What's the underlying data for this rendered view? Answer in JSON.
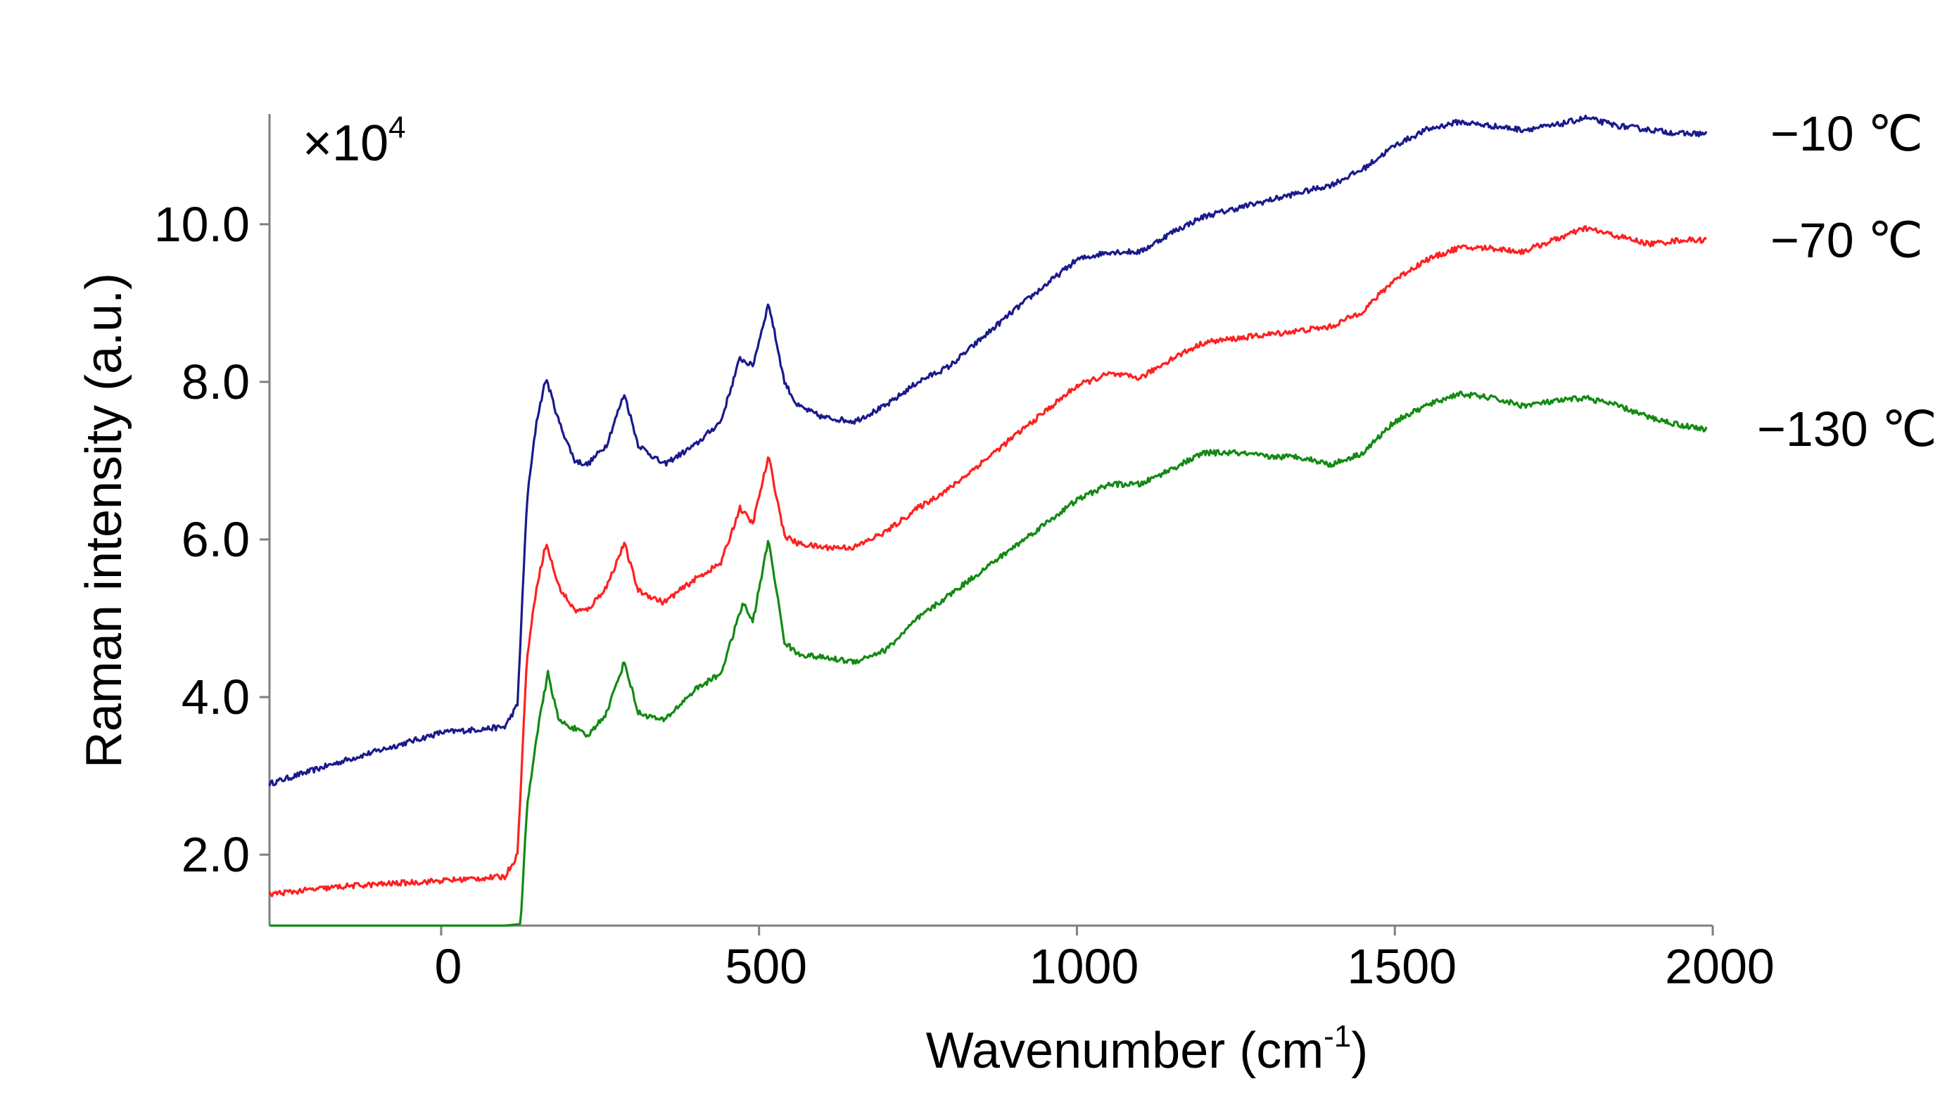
{
  "chart_data": {
    "type": "line",
    "title": "",
    "xlabel": "Wavenumber (cm",
    "xlabel_sup": "-1",
    "xlabel_tail": ")",
    "ylabel": "Raman intensity (a.u.)",
    "multiplier_label": "×10",
    "multiplier_exp": "4",
    "xlim": [
      -270,
      2000
    ],
    "ylim": [
      1.1,
      11.4
    ],
    "xticks": [
      0,
      500,
      1000,
      1500,
      2000
    ],
    "xtick_labels": [
      "0",
      "500",
      "1000",
      "1500",
      "2000"
    ],
    "yticks": [
      2.0,
      4.0,
      6.0,
      8.0,
      10.0
    ],
    "ytick_labels": [
      "2.0",
      "4.0",
      "6.0",
      "8.0",
      "10.0"
    ],
    "grid": false,
    "legend_placement": "right of line ends",
    "series": [
      {
        "name": "−10 ℃",
        "color": "#1a1a8c",
        "x": [
          -270,
          -150,
          0,
          100,
          120,
          135,
          150,
          165,
          185,
          210,
          230,
          260,
          288,
          310,
          350,
          400,
          440,
          470,
          490,
          515,
          540,
          560,
          600,
          650,
          700,
          750,
          800,
          900,
          1000,
          1050,
          1100,
          1150,
          1200,
          1250,
          1300,
          1350,
          1400,
          1450,
          1500,
          1550,
          1600,
          1650,
          1700,
          1750,
          1800,
          1850,
          1900,
          1950,
          1990
        ],
        "values": [
          2.9,
          3.2,
          3.55,
          3.62,
          3.9,
          6.5,
          7.5,
          8.05,
          7.5,
          7.0,
          6.95,
          7.2,
          7.85,
          7.2,
          6.95,
          7.2,
          7.5,
          8.3,
          8.2,
          9.0,
          8.0,
          7.7,
          7.55,
          7.5,
          7.7,
          8.0,
          8.2,
          8.9,
          9.55,
          9.65,
          9.65,
          9.9,
          10.1,
          10.2,
          10.3,
          10.4,
          10.5,
          10.7,
          11.0,
          11.2,
          11.3,
          11.25,
          11.2,
          11.25,
          11.35,
          11.25,
          11.2,
          11.15,
          11.15
        ]
      },
      {
        "name": "−70 ℃",
        "color": "#ff2020",
        "x": [
          -270,
          -150,
          0,
          100,
          120,
          135,
          150,
          165,
          185,
          210,
          230,
          260,
          288,
          310,
          350,
          400,
          440,
          470,
          490,
          515,
          540,
          560,
          600,
          650,
          700,
          750,
          800,
          900,
          1000,
          1050,
          1100,
          1150,
          1200,
          1250,
          1300,
          1350,
          1400,
          1450,
          1500,
          1550,
          1600,
          1650,
          1700,
          1750,
          1800,
          1850,
          1900,
          1950,
          1990
        ],
        "values": [
          1.5,
          1.6,
          1.67,
          1.72,
          2.0,
          4.5,
          5.4,
          5.95,
          5.4,
          5.1,
          5.1,
          5.4,
          5.95,
          5.35,
          5.2,
          5.5,
          5.7,
          6.4,
          6.2,
          7.05,
          6.05,
          5.95,
          5.9,
          5.9,
          6.1,
          6.4,
          6.65,
          7.3,
          7.95,
          8.1,
          8.05,
          8.3,
          8.5,
          8.55,
          8.6,
          8.65,
          8.7,
          8.9,
          9.3,
          9.55,
          9.7,
          9.7,
          9.65,
          9.8,
          9.95,
          9.85,
          9.75,
          9.8,
          9.8
        ]
      },
      {
        "name": "−130 ℃",
        "color": "#138a13",
        "x": [
          -270,
          -150,
          0,
          100,
          125,
          135,
          150,
          168,
          185,
          210,
          230,
          260,
          288,
          310,
          350,
          400,
          440,
          475,
          490,
          515,
          540,
          560,
          600,
          650,
          700,
          750,
          800,
          900,
          1000,
          1050,
          1100,
          1150,
          1200,
          1250,
          1300,
          1350,
          1400,
          1450,
          1500,
          1550,
          1600,
          1650,
          1700,
          1750,
          1800,
          1850,
          1900,
          1950,
          1990
        ],
        "values": [
          1.1,
          1.1,
          1.1,
          1.1,
          1.12,
          2.6,
          3.5,
          4.3,
          3.7,
          3.6,
          3.5,
          3.8,
          4.45,
          3.8,
          3.7,
          4.1,
          4.3,
          5.2,
          4.95,
          6.0,
          4.7,
          4.55,
          4.5,
          4.45,
          4.6,
          5.0,
          5.3,
          5.9,
          6.5,
          6.7,
          6.7,
          6.9,
          7.1,
          7.1,
          7.05,
          7.05,
          6.95,
          7.1,
          7.5,
          7.7,
          7.85,
          7.8,
          7.7,
          7.75,
          7.8,
          7.7,
          7.55,
          7.45,
          7.4
        ]
      }
    ]
  }
}
